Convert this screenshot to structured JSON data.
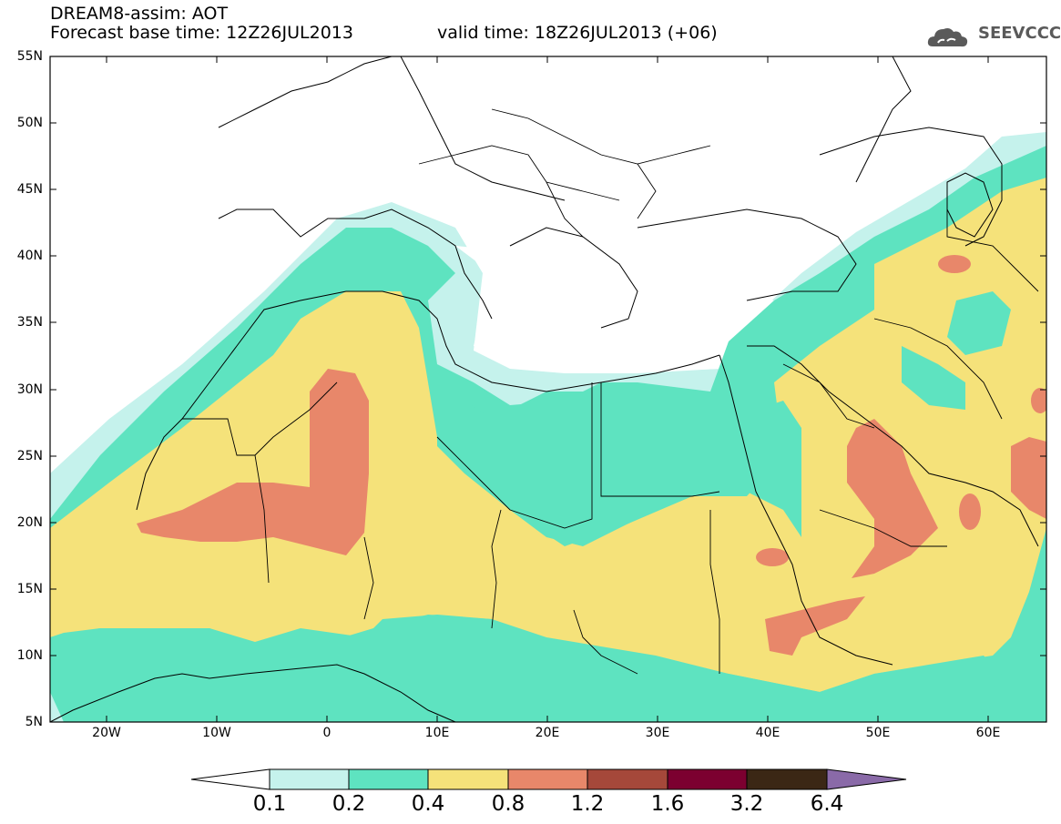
{
  "header": {
    "title": "DREAM8-assim: AOT",
    "base_time": "Forecast base time: 12Z26JUL2013",
    "valid_time": "valid time: 18Z26JUL2013 (+06)"
  },
  "logo": {
    "text": "SEEVCCC",
    "icon": "cloud-icon"
  },
  "map": {
    "variable": "AOT",
    "lat_labels": [
      "55N",
      "50N",
      "45N",
      "40N",
      "35N",
      "30N",
      "25N",
      "20N",
      "15N",
      "10N",
      "5N"
    ],
    "lon_labels": [
      "20W",
      "10W",
      "0",
      "10E",
      "20E",
      "30E",
      "40E",
      "50E",
      "60E"
    ],
    "colors": {
      "lt01": "#ffffff",
      "r01_02": "#c5f2ec",
      "r02_04": "#5ee3c0",
      "r04_08": "#f5e27a",
      "r08_12": "#e8876a",
      "r12_16": "#a5483a",
      "r16_32": "#7c0030",
      "r32_64": "#3b2715",
      "gt64": "#8a6aa8"
    }
  },
  "colorbar": {
    "labels": [
      "0.1",
      "0.2",
      "0.4",
      "0.8",
      "1.2",
      "1.6",
      "3.2",
      "6.4"
    ]
  }
}
